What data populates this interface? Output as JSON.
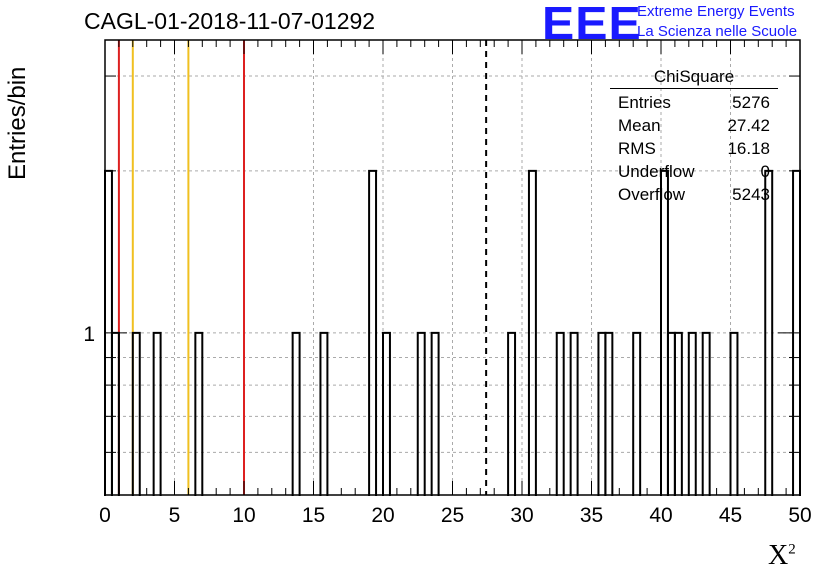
{
  "header": {
    "title": "CAGL-01-2018-11-07-01292",
    "logo_text": "EEE",
    "logo_line1": "Extreme Energy Events",
    "logo_line2": "La Scienza nelle Scuole"
  },
  "stats_box": {
    "title": "ChiSquare",
    "rows": [
      {
        "label": "Entries",
        "value": "5276"
      },
      {
        "label": "Mean",
        "value": "27.42"
      },
      {
        "label": "RMS",
        "value": "16.18"
      },
      {
        "label": "Underflow",
        "value": "0"
      },
      {
        "label": "Overflow",
        "value": "5243"
      }
    ]
  },
  "chart_data": {
    "type": "bar",
    "style": "step-histogram",
    "title": "CAGL-01-2018-11-07-01292",
    "xlabel": "X",
    "xlabel_superscript": "2",
    "ylabel": "Entries/bin",
    "xlim": [
      0,
      50
    ],
    "ylim": [
      0.5,
      3.5
    ],
    "yscale": "log",
    "grid": true,
    "bin_width": 0.5,
    "x_ticks": [
      0,
      5,
      10,
      15,
      20,
      25,
      30,
      35,
      40,
      45,
      50
    ],
    "y_ticks": [
      1
    ],
    "bins": [
      {
        "x": 0.0,
        "y": 2
      },
      {
        "x": 0.5,
        "y": 1
      },
      {
        "x": 2.0,
        "y": 1
      },
      {
        "x": 3.5,
        "y": 1
      },
      {
        "x": 6.5,
        "y": 1
      },
      {
        "x": 13.5,
        "y": 1
      },
      {
        "x": 15.5,
        "y": 1
      },
      {
        "x": 19.0,
        "y": 2
      },
      {
        "x": 20.0,
        "y": 1
      },
      {
        "x": 22.5,
        "y": 1
      },
      {
        "x": 23.5,
        "y": 1
      },
      {
        "x": 29.0,
        "y": 1
      },
      {
        "x": 30.5,
        "y": 2
      },
      {
        "x": 32.5,
        "y": 1
      },
      {
        "x": 33.5,
        "y": 1
      },
      {
        "x": 35.5,
        "y": 1
      },
      {
        "x": 36.0,
        "y": 1
      },
      {
        "x": 38.0,
        "y": 1
      },
      {
        "x": 40.0,
        "y": 2
      },
      {
        "x": 40.5,
        "y": 1
      },
      {
        "x": 41.0,
        "y": 1
      },
      {
        "x": 42.0,
        "y": 1
      },
      {
        "x": 43.0,
        "y": 1
      },
      {
        "x": 45.0,
        "y": 1
      },
      {
        "x": 47.5,
        "y": 2
      },
      {
        "x": 49.5,
        "y": 2
      }
    ],
    "vertical_lines": [
      {
        "x": 1,
        "color": "#dd2020",
        "style": "solid"
      },
      {
        "x": 2,
        "color": "#f0c020",
        "style": "solid"
      },
      {
        "x": 6,
        "color": "#f0c020",
        "style": "solid"
      },
      {
        "x": 10,
        "color": "#dd2020",
        "style": "solid"
      },
      {
        "x": 27.42,
        "color": "#000000",
        "style": "dashed"
      }
    ]
  }
}
